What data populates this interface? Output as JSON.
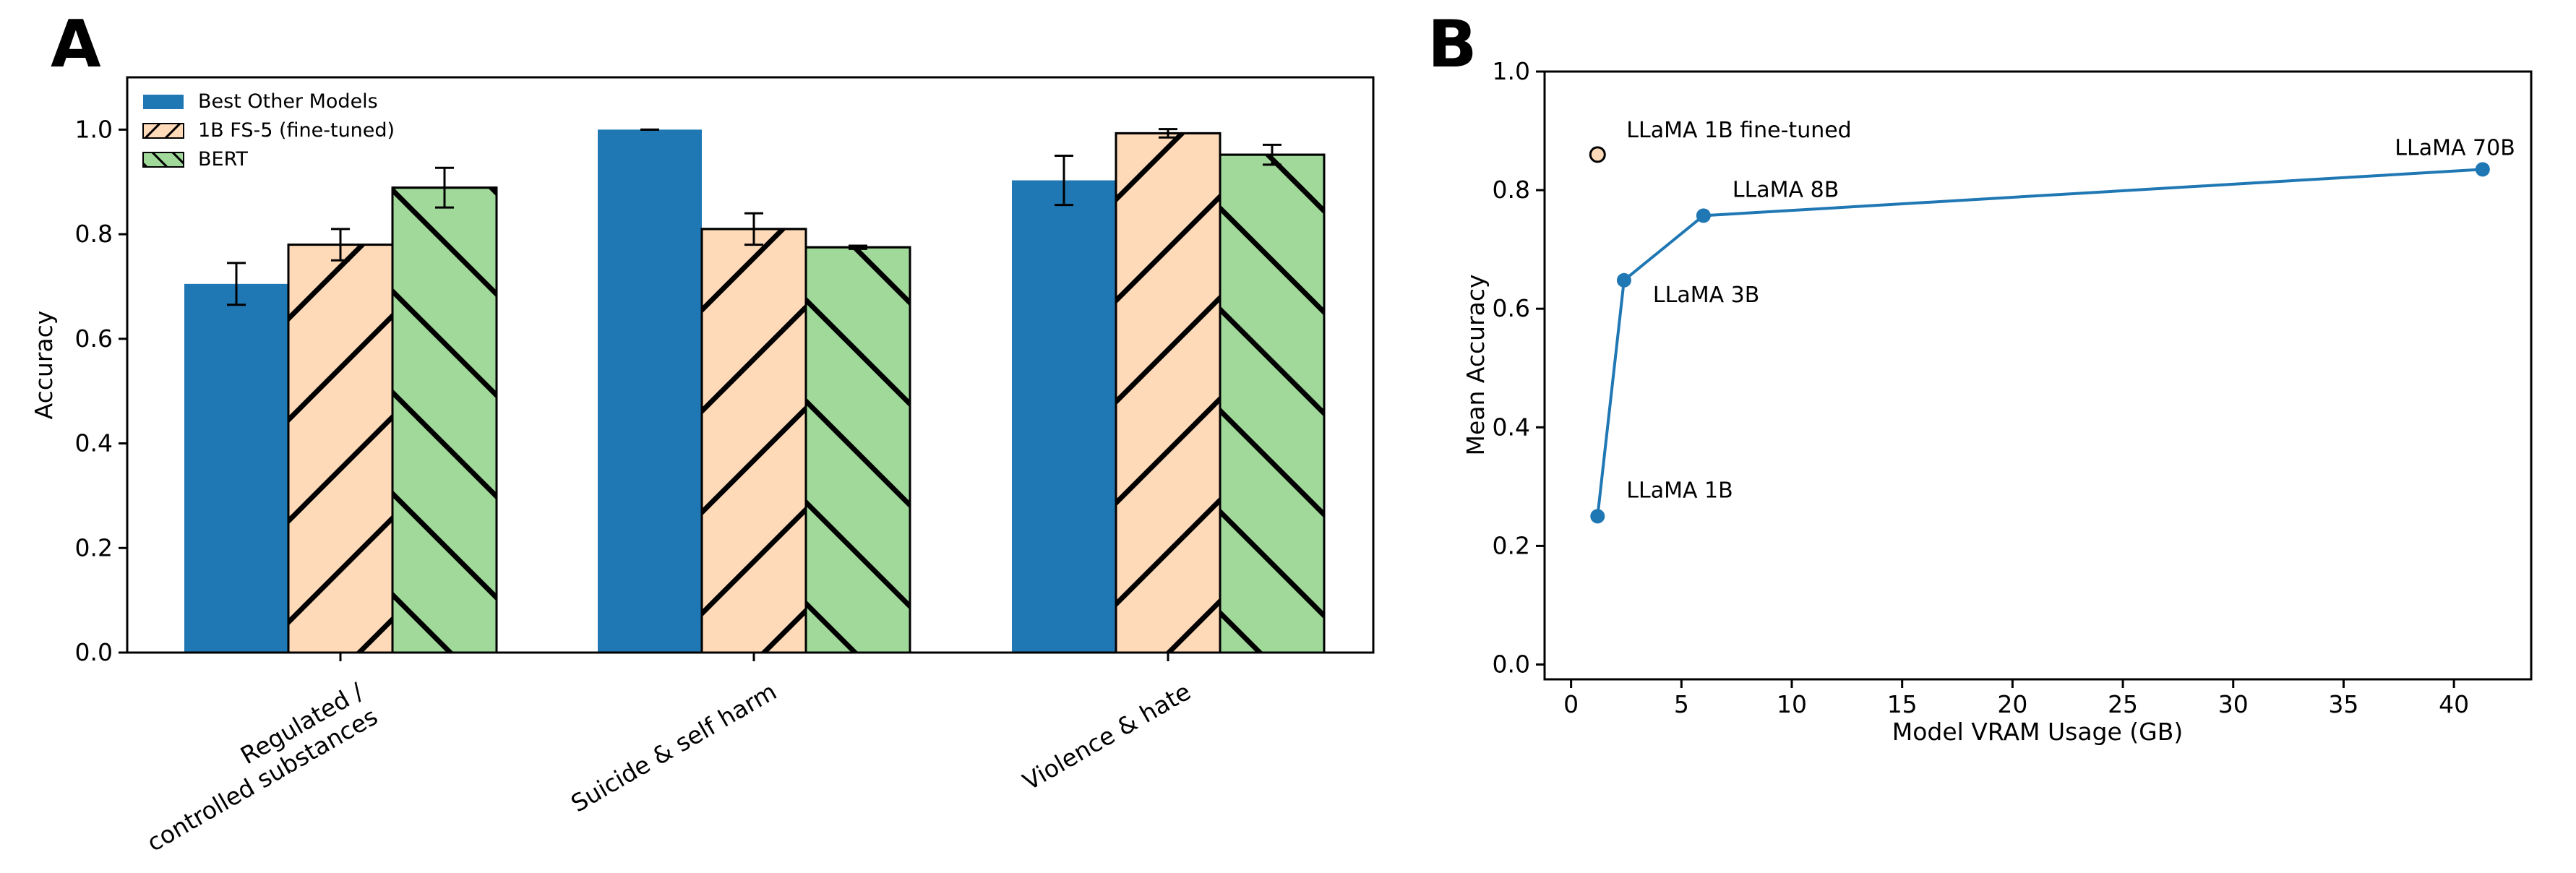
{
  "panels": {
    "A": {
      "letter": "A"
    },
    "B": {
      "letter": "B"
    }
  },
  "colors": {
    "best_other": "#1f77b4",
    "fs5": "#ffdab9",
    "bert": "#a1d99b",
    "line": "#1f77b4",
    "finetuned_point": "#ffdab9"
  },
  "chart_data": [
    {
      "panel": "A",
      "type": "bar",
      "categories": [
        "Regulated / controlled substances",
        "Suicide & self harm",
        "Violence & hate"
      ],
      "category_lines": [
        [
          "Regulated /",
          "controlled substances"
        ],
        [
          "Suicide & self harm"
        ],
        [
          "Violence & hate"
        ]
      ],
      "series": [
        {
          "name": "Best Other Models",
          "values": [
            0.705,
            1.0,
            0.903
          ],
          "errors": [
            0.04,
            0.0,
            0.047
          ],
          "hatch": "none"
        },
        {
          "name": "1B FS-5 (fine-tuned)",
          "values": [
            0.78,
            0.81,
            0.993
          ],
          "errors": [
            0.03,
            0.03,
            0.008
          ],
          "hatch": "forward"
        },
        {
          "name": "BERT",
          "values": [
            0.889,
            0.775,
            0.952
          ],
          "errors": [
            0.038,
            0.003,
            0.019
          ],
          "hatch": "back"
        }
      ],
      "xlabel": "",
      "ylabel": "Accuracy",
      "ylim": [
        0,
        1.1
      ],
      "yticks": [
        0.0,
        0.2,
        0.4,
        0.6,
        0.8,
        1.0
      ],
      "ytick_labels": [
        "0.0",
        "0.2",
        "0.4",
        "0.6",
        "0.8",
        "1.0"
      ],
      "legend_position": "top-left",
      "grid": false
    },
    {
      "panel": "B",
      "type": "scatter",
      "series": [
        {
          "name": "",
          "connected": true,
          "points": [
            {
              "x": 1.2,
              "y": 0.25,
              "label": "LLaMA 1B"
            },
            {
              "x": 2.4,
              "y": 0.648,
              "label": "LLaMA 3B"
            },
            {
              "x": 6.0,
              "y": 0.757,
              "label": "LLaMA 8B"
            },
            {
              "x": 41.3,
              "y": 0.835,
              "label": "LLaMA 70B"
            }
          ]
        },
        {
          "name": "",
          "connected": false,
          "points": [
            {
              "x": 1.2,
              "y": 0.86,
              "label": "LLaMA 1B fine-tuned"
            }
          ]
        }
      ],
      "xlabel": "Model VRAM Usage (GB)",
      "ylabel": "Mean Accuracy",
      "xlim": [
        -1.2,
        43.5
      ],
      "ylim": [
        -0.025,
        1.0
      ],
      "xticks": [
        0,
        5,
        10,
        15,
        20,
        25,
        30,
        35,
        40
      ],
      "xtick_labels": [
        "0",
        "5",
        "10",
        "15",
        "20",
        "25",
        "30",
        "35",
        "40"
      ],
      "yticks": [
        0.0,
        0.2,
        0.4,
        0.6,
        0.8,
        1.0
      ],
      "ytick_labels": [
        "0.0",
        "0.2",
        "0.4",
        "0.6",
        "0.8",
        "1.0"
      ],
      "grid": false
    }
  ]
}
